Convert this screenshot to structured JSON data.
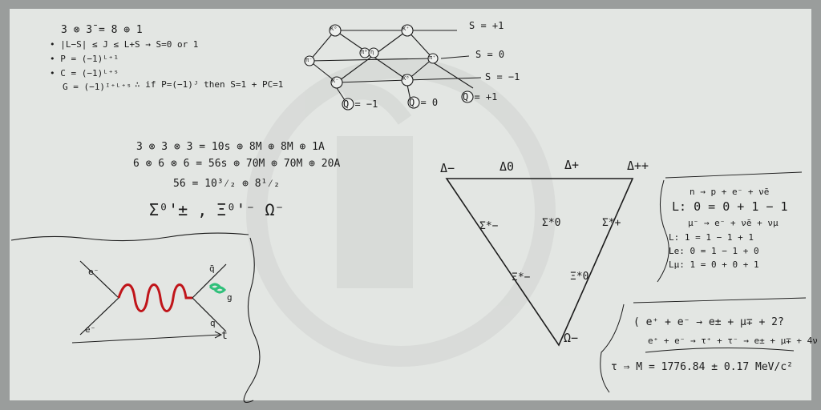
{
  "board": {
    "accent_colors": {
      "frame": "#9a9d9c",
      "surface": "#e3e6e3",
      "ink": "#1c1c1c",
      "boson": "#c0151a",
      "gluon": "#2fc07a"
    },
    "rules_block": {
      "lines": [
        "3 ⊗ 3̄ = 8 ⊕ 1",
        "• |L−S| ≤ J ≤ L+S → S=0 or 1",
        "• P = (−1)ᴸ⁺¹",
        "• C = (−1)ᴸ⁺ˢ",
        "G = (−1)ᴵ⁺ᴸ⁺ˢ",
        "∴ if P=(−1)ᴶ then S=1 + PC=1"
      ]
    },
    "meson_octet": {
      "nodes": [
        "K⁰",
        "K⁺",
        "π⁻",
        "π⁰",
        "η",
        "π⁺",
        "K⁻",
        "K̄⁰"
      ],
      "strangeness": [
        "S = +1",
        "S = 0",
        "S = −1"
      ],
      "charges": [
        "Q = −1",
        "Q = 0",
        "Q = +1"
      ]
    },
    "flavour_block": {
      "lines": [
        "3 ⊗ 3 ⊗ 3 = 10s ⊕ 8M ⊕ 8M ⊕ 1A",
        "6 ⊗ 6 ⊗ 6 = 56s ⊕ 70M ⊕ 70M ⊕ 20A",
        "56 = 10³⁄₂ ⊕ 8¹⁄₂",
        "Σ⁰'± , Ξ⁰'⁻ Ω⁻"
      ]
    },
    "feynman": {
      "labels": [
        "e⁻",
        "e⁻",
        "q̄",
        "q",
        "g",
        "t"
      ]
    },
    "decuplet": {
      "top": [
        "Δ−",
        "Δ0",
        "Δ+",
        "Δ++"
      ],
      "middle": [
        "Σ*−",
        "Σ*0",
        "Σ*+"
      ],
      "lower": [
        "Ξ*−",
        "Ξ*0"
      ],
      "bottom": "Ω−"
    },
    "lepton_block": {
      "lines": [
        "n → p + e⁻ + ν̄e",
        "L: 0 = 0 + 1 − 1",
        "μ⁻ → e⁻ + ν̄e + νμ",
        "L: 1 = 1 − 1 + 1",
        "Le: 0 = 1 − 1 + 0",
        "Lμ: 1 = 0 + 0 + 1"
      ]
    },
    "tau_block": {
      "lines": [
        "( e⁺ + e⁻ → e± + μ∓ + 2?",
        "e⁺ + e⁻ → τ⁺ + τ⁻ → e± + μ∓ + 4ν )",
        "τ ⇒ M = 1776.84 ± 0.17 MeV/c²"
      ]
    }
  }
}
